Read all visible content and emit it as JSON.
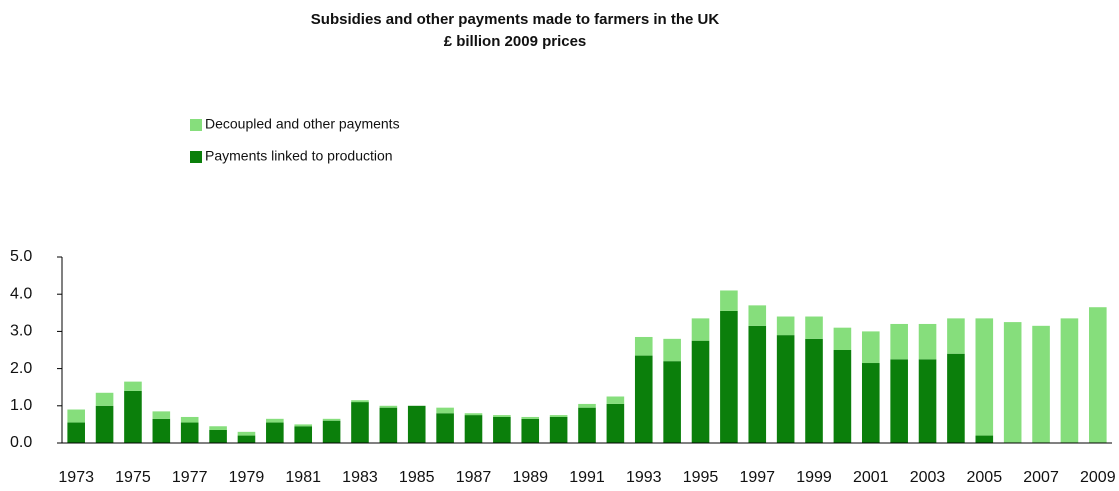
{
  "chart_data": {
    "type": "stacked_bar",
    "title": "Subsidies and other payments made to farmers in the UK",
    "subtitle": "£ billion 2009 prices",
    "categories": [
      "1973",
      null,
      "1975",
      null,
      "1977",
      null,
      "1979",
      null,
      "1981",
      null,
      "1983",
      null,
      "1985",
      null,
      "1987",
      null,
      "1989",
      null,
      "1991",
      null,
      "1993",
      null,
      "1995",
      null,
      "1997",
      null,
      "1999",
      null,
      "2001",
      null,
      "2003",
      null,
      "2005",
      null,
      "2007",
      null,
      "2009"
    ],
    "series": [
      {
        "name": "Payments linked to production",
        "color": "#0b7f0b",
        "values": [
          0.55,
          1.0,
          1.4,
          0.65,
          0.55,
          0.35,
          0.2,
          0.55,
          0.45,
          0.6,
          1.1,
          0.95,
          1.0,
          0.8,
          0.75,
          0.7,
          0.65,
          0.7,
          0.95,
          1.05,
          2.35,
          2.2,
          2.75,
          3.55,
          3.15,
          2.9,
          2.8,
          2.5,
          2.15,
          2.25,
          2.25,
          2.4,
          0.2,
          0,
          0,
          0,
          0
        ]
      },
      {
        "name": "Decoupled and other payments",
        "color": "#86de7c",
        "values": [
          0.35,
          0.35,
          0.25,
          0.2,
          0.15,
          0.1,
          0.1,
          0.1,
          0.05,
          0.05,
          0.05,
          0.05,
          0,
          0.15,
          0.05,
          0.05,
          0.05,
          0.05,
          0.1,
          0.2,
          0.5,
          0.6,
          0.6,
          0.55,
          0.55,
          0.5,
          0.6,
          0.6,
          0.85,
          0.95,
          0.95,
          0.95,
          3.15,
          3.25,
          3.15,
          3.35,
          3.65
        ]
      }
    ],
    "ylim": [
      0,
      5
    ],
    "yticks": [
      {
        "value": 0,
        "label": "0.0"
      },
      {
        "value": 1,
        "label": "1.0"
      },
      {
        "value": 2,
        "label": "2.0"
      },
      {
        "value": 3,
        "label": "3.0"
      },
      {
        "value": 4,
        "label": "4.0"
      },
      {
        "value": 5,
        "label": "5.0"
      }
    ],
    "grid": false,
    "legend": "top-left"
  }
}
